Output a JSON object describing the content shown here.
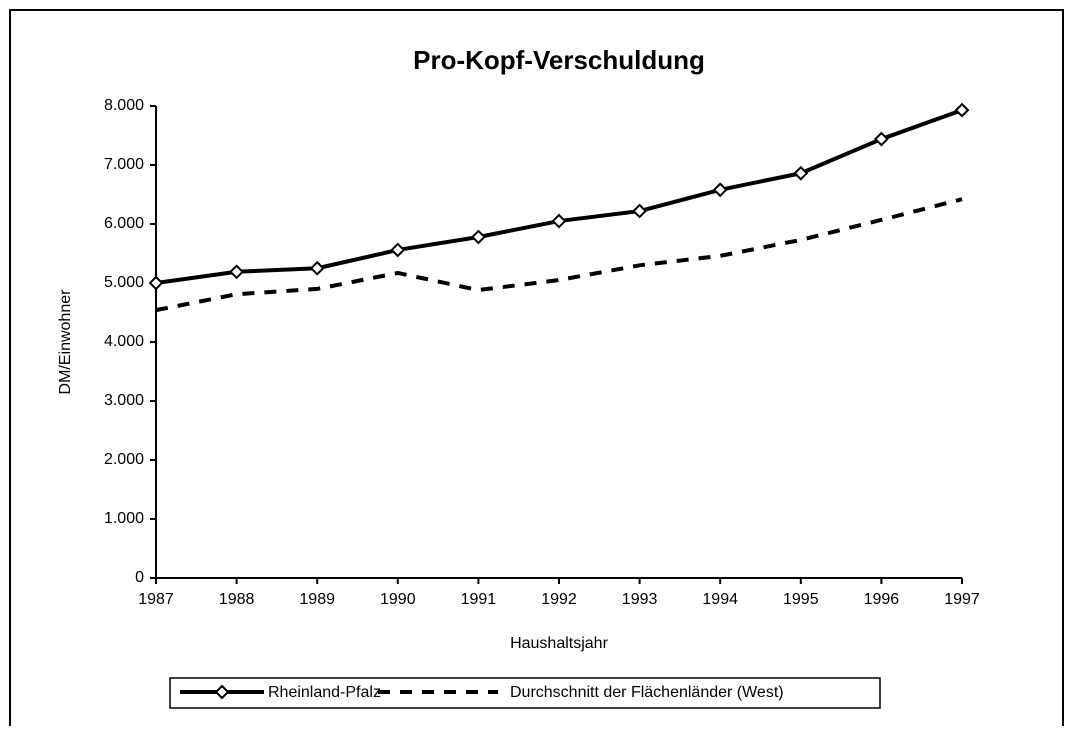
{
  "chart_data": {
    "type": "line",
    "title": "Pro-Kopf-Verschuldung",
    "x_label": "Haushaltsjahr",
    "y_label": "DM/Einwohner",
    "categories": [
      "1987",
      "1988",
      "1989",
      "1990",
      "1991",
      "1992",
      "1993",
      "1994",
      "1995",
      "1996",
      "1997"
    ],
    "series": [
      {
        "name": "Rheinland-Pfalz",
        "color": "#000000",
        "dash": false,
        "marker": "diamond",
        "values": [
          5000,
          5190,
          5250,
          5560,
          5780,
          6050,
          6220,
          6580,
          6860,
          7440,
          7930
        ]
      },
      {
        "name": "Durchschnitt der Flächenländer (West)",
        "color": "#000000",
        "dash": true,
        "marker": "none",
        "values": [
          4540,
          4810,
          4900,
          5170,
          4880,
          5050,
          5300,
          5460,
          5730,
          6070,
          6420
        ]
      }
    ],
    "ylim": [
      0,
      8000
    ],
    "yticks": [
      0,
      {
        "value": 1000,
        "label": "1.000"
      },
      {
        "value": 2000,
        "label": "2.000"
      },
      {
        "value": 3000,
        "label": "3.000"
      },
      {
        "value": 4000,
        "label": "4.000"
      },
      {
        "value": 5000,
        "label": "5.000"
      },
      {
        "value": 6000,
        "label": "6.000"
      },
      {
        "value": 7000,
        "label": "7.000"
      },
      {
        "value": 8000,
        "label": "8.000"
      }
    ],
    "grid": false,
    "legend": "bottom"
  }
}
